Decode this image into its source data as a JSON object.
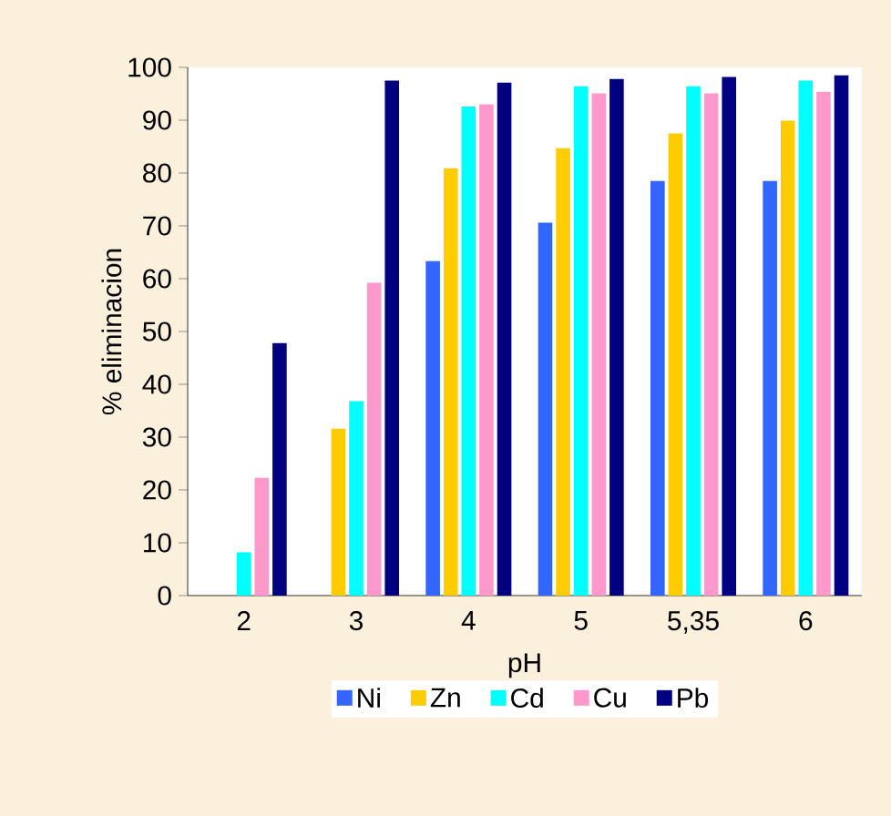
{
  "chart_data": {
    "type": "bar",
    "xlabel": "pH",
    "ylabel": "% eliminacion",
    "categories": [
      "2",
      "3",
      "4",
      "5",
      "5,35",
      "6"
    ],
    "series": [
      {
        "name": "Ni",
        "color": "#3366ff",
        "values": [
          null,
          null,
          63.3,
          70.6,
          78.5,
          78.5
        ]
      },
      {
        "name": "Zn",
        "color": "#ffcc00",
        "values": [
          null,
          31.6,
          80.9,
          84.7,
          87.5,
          89.9
        ]
      },
      {
        "name": "Cd",
        "color": "#00ffff",
        "values": [
          8.2,
          36.8,
          92.6,
          96.4,
          96.4,
          97.5
        ]
      },
      {
        "name": "Cu",
        "color": "#ff99cc",
        "values": [
          22.3,
          59.2,
          93.0,
          95.1,
          95.1,
          95.4
        ]
      },
      {
        "name": "Pb",
        "color": "#000080",
        "values": [
          47.8,
          97.5,
          97.1,
          97.8,
          98.2,
          98.5
        ]
      }
    ],
    "ylim": [
      0,
      100
    ],
    "yticks": [
      0,
      10,
      20,
      30,
      40,
      50,
      60,
      70,
      80,
      90,
      100
    ],
    "grid": false,
    "legend": "bottom"
  }
}
